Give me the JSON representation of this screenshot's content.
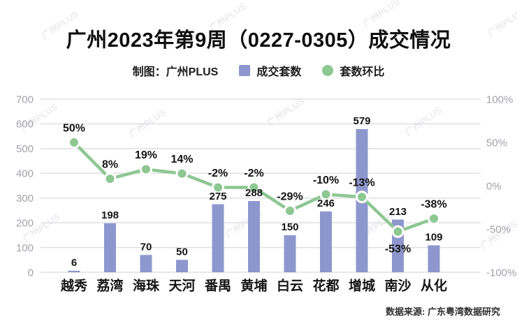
{
  "title": "广州2023年第9周（0227-0305）成交情况",
  "legend": {
    "credit": "制图：广州PLUS",
    "bar_label": "成交套数",
    "line_label": "套数环比"
  },
  "source": "数据来源: 广东粤湾数据研究",
  "watermark": "广州PLUS",
  "colors": {
    "bar": "#8e97cd",
    "line": "#8dc791",
    "marker_stroke": "#ffffff",
    "grid": "#dfdfe4",
    "axis_text": "#a2a2aa",
    "label_text": "#141414"
  },
  "chart_data": {
    "type": "bar",
    "subtype": "bar-line-combo",
    "categories": [
      "越秀",
      "荔湾",
      "海珠",
      "天河",
      "番禺",
      "黄埔",
      "白云",
      "花都",
      "增城",
      "南沙",
      "从化"
    ],
    "series": [
      {
        "name": "成交套数",
        "type": "bar",
        "axis": "left",
        "values": [
          6,
          198,
          70,
          50,
          275,
          288,
          150,
          246,
          579,
          213,
          109
        ]
      },
      {
        "name": "套数环比",
        "type": "line",
        "axis": "right",
        "values": [
          50,
          8,
          19,
          14,
          -2,
          -2,
          -29,
          -10,
          -13,
          -53,
          -38
        ],
        "labels": [
          "50%",
          "8%",
          "19%",
          "14%",
          "-2%",
          "-2%",
          "-29%",
          "-10%",
          "-13%",
          "-53%",
          "-38%"
        ]
      }
    ],
    "left_axis": {
      "min": 0,
      "max": 700,
      "tick_step": 100,
      "tick_labels": [
        "0",
        "100",
        "200",
        "300",
        "400",
        "500",
        "600",
        "700"
      ]
    },
    "right_axis": {
      "min": -100,
      "max": 100,
      "tick_values": [
        100,
        50,
        0,
        -50,
        -100
      ],
      "tick_labels": [
        "100%",
        "50%",
        "0%",
        "-50%",
        "-100%"
      ]
    },
    "grid": true,
    "legend_position": "top"
  }
}
